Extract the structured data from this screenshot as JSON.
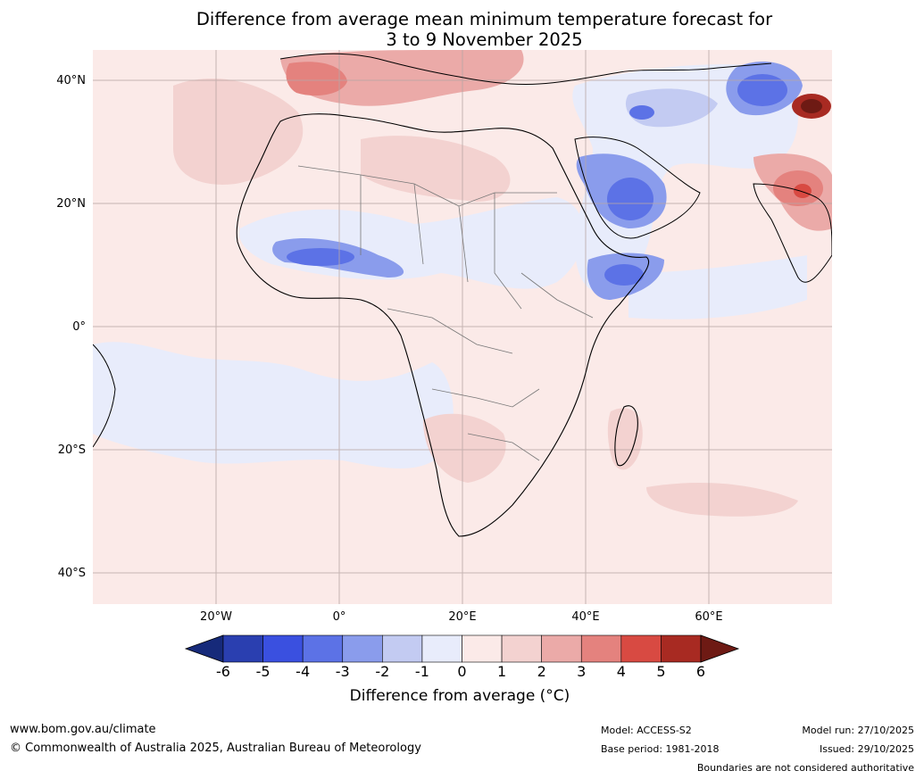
{
  "title": {
    "line1": "Difference from average mean minimum temperature forecast for",
    "line2": "3 to 9 November 2025"
  },
  "map": {
    "lat_labels": [
      "40°N",
      "20°N",
      "0°",
      "20°S",
      "40°S"
    ],
    "lon_labels": [
      "20°W",
      "0°",
      "20°E",
      "40°E",
      "60°E"
    ]
  },
  "colorbar": {
    "ticks": [
      "-6",
      "-5",
      "-4",
      "-3",
      "-2",
      "-1",
      "0",
      "1",
      "2",
      "3",
      "4",
      "5",
      "6"
    ],
    "colors": [
      "#162a7a",
      "#2a3fb0",
      "#3a50e0",
      "#5c72e6",
      "#8a9cec",
      "#c3cbf2",
      "#e8ecfb",
      "#fbeae8",
      "#f3d2d0",
      "#ebaaa8",
      "#e4827e",
      "#d84a42",
      "#a82a22",
      "#6e1a14"
    ],
    "label": "Difference from average (°C)"
  },
  "footer": {
    "url": "www.bom.gov.au/climate",
    "copyright": "© Commonwealth of Australia 2025, Australian Bureau of Meteorology",
    "model": "Model: ACCESS-S2",
    "base_period": "Base period: 1981-2018",
    "model_run": "Model run: 27/10/2025",
    "issued": "Issued: 29/10/2025",
    "disclaimer": "Boundaries are not considered authoritative"
  }
}
